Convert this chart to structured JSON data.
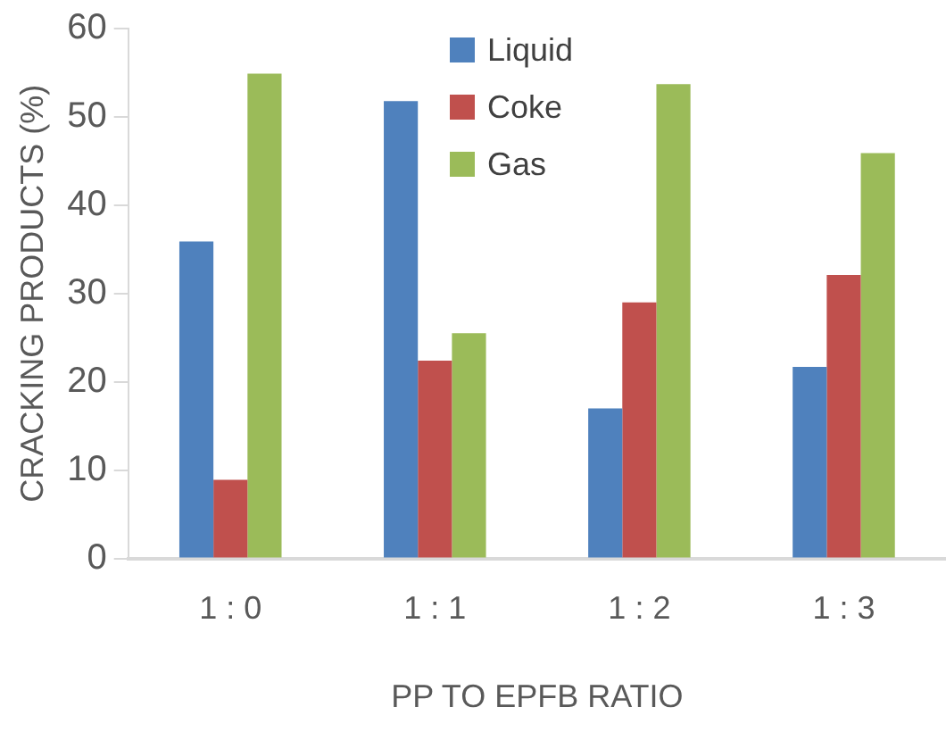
{
  "chart_data": {
    "type": "bar",
    "xlabel": "PP TO EPFB RATIO",
    "ylabel": "CRACKING PRODUCTS (%)",
    "categories": [
      "1 : 0",
      "1 : 1",
      "1 : 2",
      "1 : 3"
    ],
    "series": [
      {
        "name": "Liquid",
        "color": "#4f81bd",
        "values": [
          35.9,
          51.8,
          17.0,
          21.7
        ]
      },
      {
        "name": "Coke",
        "color": "#c0504d",
        "values": [
          8.9,
          22.4,
          29.0,
          32.1
        ]
      },
      {
        "name": "Gas",
        "color": "#9bbb59",
        "values": [
          54.9,
          25.5,
          53.7,
          45.9
        ]
      }
    ],
    "ylim": [
      0,
      60
    ],
    "yticks": [
      0,
      10,
      20,
      30,
      40,
      50,
      60
    ],
    "grid": false,
    "legend": "top"
  }
}
